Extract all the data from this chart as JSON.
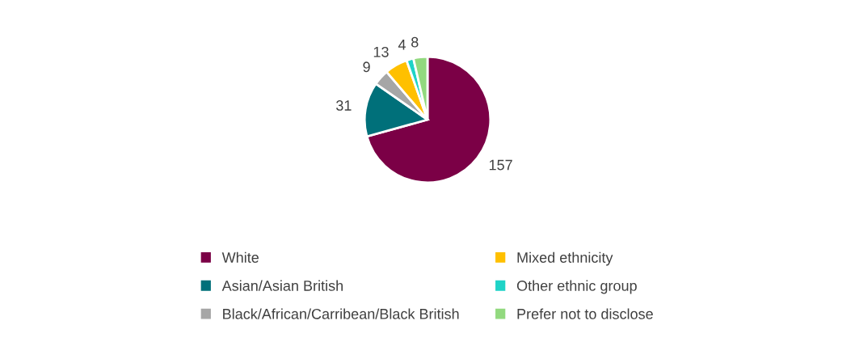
{
  "chart_data": {
    "type": "pie",
    "categories": [
      "White",
      "Asian/Asian British",
      "Black/African/Carribean/Black British",
      "Mixed ethnicity",
      "Other ethnic group",
      "Prefer not to disclose"
    ],
    "values": [
      157,
      31,
      9,
      13,
      4,
      8
    ],
    "colors": [
      "#7b0046",
      "#00707a",
      "#a6a6a6",
      "#ffc000",
      "#1fd3c7",
      "#92d97f"
    ],
    "data_labels": true,
    "legend": "bottom"
  }
}
